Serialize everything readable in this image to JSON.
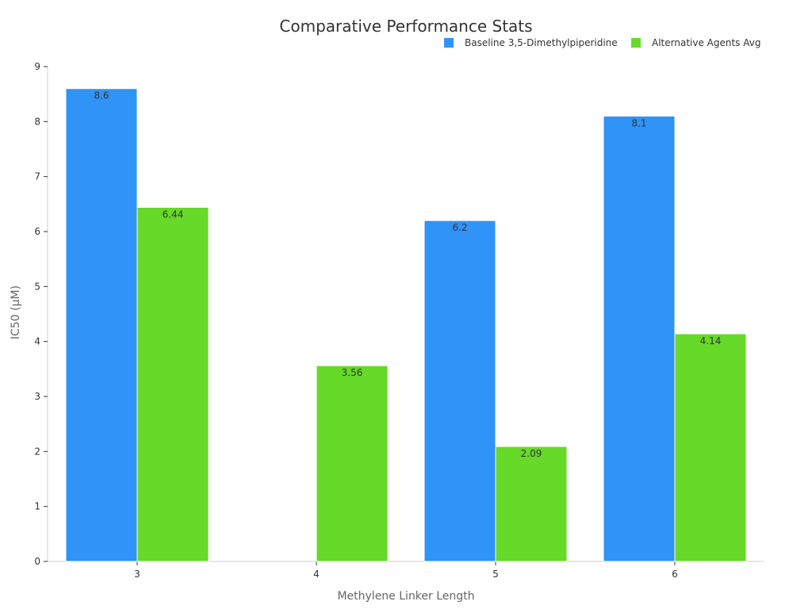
{
  "chart_data": {
    "type": "bar",
    "title": "Comparative Performance Stats",
    "xlabel": "Methylene Linker Length",
    "ylabel": "IC50 (μM)",
    "categories": [
      "3",
      "4",
      "5",
      "6"
    ],
    "ylim": [
      0,
      9
    ],
    "yticks": [
      "0",
      "1",
      "2",
      "3",
      "4",
      "5",
      "6",
      "7",
      "8",
      "9"
    ],
    "grid": false,
    "legend_position": "top-right",
    "series": [
      {
        "name": "Baseline 3,5-Dimethylpiperidine",
        "color": "#2f93f8",
        "values": [
          8.6,
          null,
          6.2,
          8.1
        ],
        "labels": [
          "8.6",
          "",
          "6.2",
          "8.1"
        ]
      },
      {
        "name": "Alternative Agents Avg",
        "color": "#67d928",
        "values": [
          6.44,
          3.56,
          2.09,
          4.14
        ],
        "labels": [
          "6.44",
          "3.56",
          "2.09",
          "4.14"
        ]
      }
    ]
  }
}
